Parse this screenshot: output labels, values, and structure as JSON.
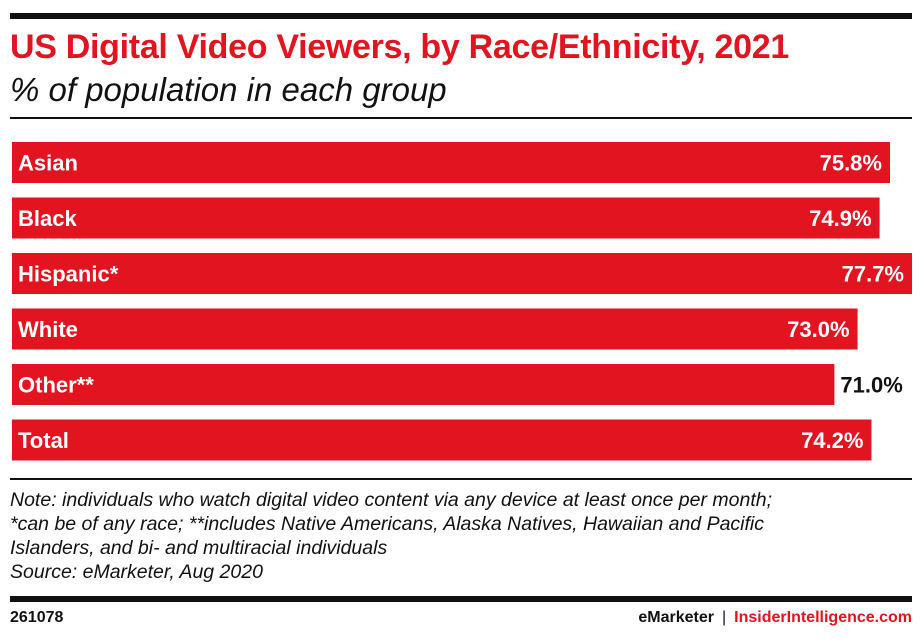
{
  "header": {
    "title": "US Digital Video Viewers, by Race/Ethnicity, 2021",
    "subtitle": "% of population in each group"
  },
  "colors": {
    "bar": "#e1141f",
    "title": "#e1141f",
    "label_inside": "#ffffff",
    "label_outside": "#111111"
  },
  "chart_data": {
    "type": "bar",
    "orientation": "horizontal",
    "categories": [
      "Asian",
      "Black",
      "Hispanic*",
      "White",
      "Other**",
      "Total"
    ],
    "values": [
      75.8,
      74.9,
      77.7,
      73.0,
      71.0,
      74.2
    ],
    "value_labels": [
      "75.8%",
      "74.9%",
      "77.7%",
      "73.0%",
      "71.0%",
      "74.2%"
    ],
    "title": "US Digital Video Viewers, by Race/Ethnicity, 2021",
    "subtitle": "% of population in each group",
    "xlim": [
      0,
      77.7
    ],
    "grid": false,
    "legend": "none"
  },
  "notes": {
    "lines": [
      "Note: individuals who watch digital video content via any device at least once per month;",
      "*can be of any race; **includes Native Americans, Alaska Natives, Hawaiian and Pacific",
      "Islanders, and bi- and multiracial individuals",
      "Source: eMarketer, Aug 2020"
    ]
  },
  "footer": {
    "chart_id": "261078",
    "brand": "eMarketer",
    "separator": "|",
    "site": "InsiderIntelligence.com"
  }
}
